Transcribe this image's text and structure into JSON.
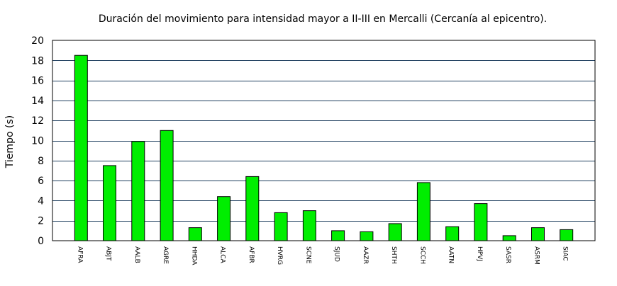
{
  "chart_data": {
    "type": "bar",
    "title": "Duración del movimiento para intensidad mayor a II-III en Mercalli (Cercanía al epicentro).",
    "xlabel": "",
    "ylabel": "Tiempo (s)",
    "ylim": [
      0,
      20
    ],
    "yticks": [
      0,
      2,
      4,
      6,
      8,
      10,
      12,
      14,
      16,
      18,
      20
    ],
    "grid": true,
    "categories": [
      "AFRA",
      "ABJT",
      "AALB",
      "AGRE",
      "HHDA",
      "ALCA",
      "AFBR",
      "HVRG",
      "SCNE",
      "SJUD",
      "AAZR",
      "SHTH",
      "SCCH",
      "AATN",
      "HPVJ",
      "SASR",
      "ASRM",
      "SIAC"
    ],
    "values": [
      18.5,
      7.5,
      9.9,
      11.0,
      1.3,
      4.4,
      6.4,
      2.8,
      3.0,
      1.0,
      0.9,
      1.7,
      5.8,
      1.4,
      3.7,
      0.5,
      1.3,
      1.1
    ],
    "colors": {
      "bar_fill": "#00ee00",
      "bar_stroke": "#000000",
      "grid": "#1f3f5f",
      "frame": "#000000"
    }
  }
}
